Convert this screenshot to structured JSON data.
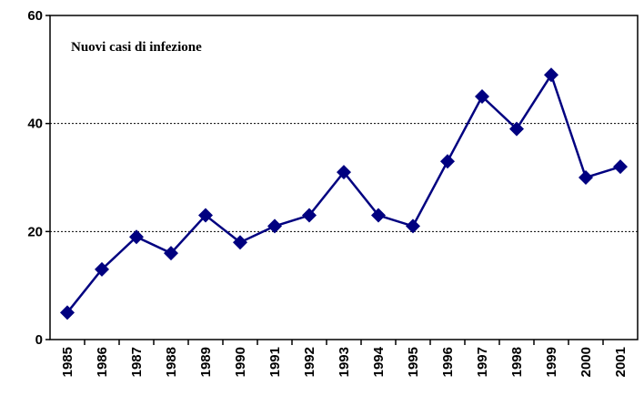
{
  "chart_data": {
    "type": "line",
    "annotation": "Nuovi casi di infezione",
    "categories": [
      "1985",
      "1986",
      "1987",
      "1988",
      "1989",
      "1990",
      "1991",
      "1992",
      "1993",
      "1994",
      "1995",
      "1996",
      "1997",
      "1998",
      "1999",
      "2000",
      "2001"
    ],
    "series": [
      {
        "color": "#000080",
        "values": [
          5,
          13,
          19,
          16,
          23,
          18,
          21,
          23,
          31,
          23,
          21,
          33,
          45,
          39,
          49,
          30,
          32
        ]
      }
    ],
    "ylim": [
      0,
      60
    ],
    "yticks": [
      0,
      20,
      40,
      60
    ],
    "grid": true
  }
}
